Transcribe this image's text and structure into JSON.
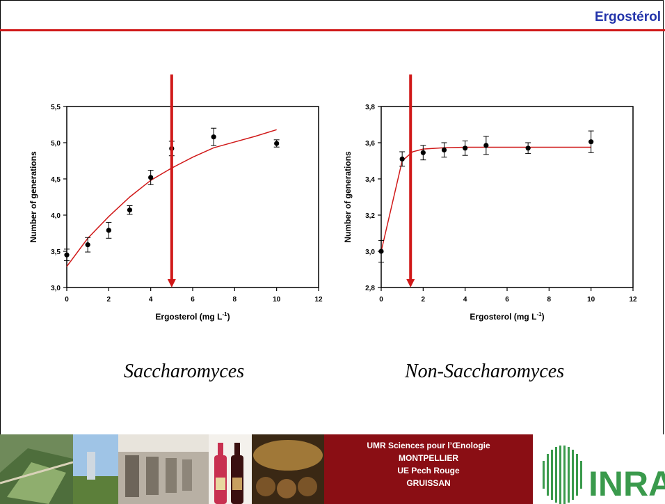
{
  "slide": {
    "title": "Ergostérol"
  },
  "captions": {
    "left": "Saccharomyces",
    "right": "Non-Saccharomyces"
  },
  "footer": {
    "lines": [
      "UMR Sciences pour l’Œnologie",
      "MONTPELLIER",
      "UE Pech Rouge",
      "GRUISSAN"
    ],
    "logo_text": "INRA"
  },
  "colors": {
    "accent": "#d01818",
    "title": "#2233aa",
    "footer": "#8a0e14"
  },
  "chart_data": [
    {
      "type": "scatter",
      "xlabel": "Ergosterol (mg L",
      "xlabel_sup": "-1",
      "xlabel_end": ")",
      "ylabel": "Number of generations",
      "xlim": [
        0,
        12
      ],
      "ylim": [
        3.0,
        5.5
      ],
      "xticks": [
        0,
        2,
        4,
        6,
        8,
        10,
        12
      ],
      "yticks": [
        3.0,
        3.5,
        4.0,
        4.5,
        5.0,
        5.5
      ],
      "ytick_labels": [
        "3,0",
        "3,5",
        "4,0",
        "4,5",
        "5,0",
        "5,5"
      ],
      "points": [
        {
          "x": 0,
          "y": 3.45,
          "err": 0.08
        },
        {
          "x": 1,
          "y": 3.59,
          "err": 0.1
        },
        {
          "x": 2,
          "y": 3.79,
          "err": 0.11
        },
        {
          "x": 3,
          "y": 4.07,
          "err": 0.06
        },
        {
          "x": 4,
          "y": 4.52,
          "err": 0.1
        },
        {
          "x": 5,
          "y": 4.92,
          "err": 0.1
        },
        {
          "x": 7,
          "y": 5.08,
          "err": 0.12
        },
        {
          "x": 10,
          "y": 4.99,
          "err": 0.05
        }
      ],
      "fit": {
        "x": [
          0,
          1,
          2,
          3,
          4,
          5,
          6,
          7,
          8,
          9,
          10
        ],
        "y": [
          3.29,
          3.68,
          3.98,
          4.25,
          4.48,
          4.65,
          4.8,
          4.93,
          5.01,
          5.09,
          5.18
        ]
      },
      "arrow_x": 5
    },
    {
      "type": "scatter",
      "xlabel": "Ergosterol (mg L",
      "xlabel_sup": "-1",
      "xlabel_end": ")",
      "ylabel": "Number of generations",
      "xlim": [
        0,
        12
      ],
      "ylim": [
        2.8,
        3.8
      ],
      "xticks": [
        0,
        2,
        4,
        6,
        8,
        10,
        12
      ],
      "yticks": [
        2.8,
        3.0,
        3.2,
        3.4,
        3.6,
        3.8
      ],
      "ytick_labels": [
        "2,8",
        "3,0",
        "3,2",
        "3,4",
        "3,6",
        "3,8"
      ],
      "points": [
        {
          "x": 0,
          "y": 3.0,
          "err": 0.06
        },
        {
          "x": 1,
          "y": 3.51,
          "err": 0.04
        },
        {
          "x": 2,
          "y": 3.545,
          "err": 0.04
        },
        {
          "x": 3,
          "y": 3.56,
          "err": 0.04
        },
        {
          "x": 4,
          "y": 3.57,
          "err": 0.04
        },
        {
          "x": 5,
          "y": 3.585,
          "err": 0.05
        },
        {
          "x": 7,
          "y": 3.57,
          "err": 0.03
        },
        {
          "x": 10,
          "y": 3.605,
          "err": 0.06
        }
      ],
      "fit": {
        "x": [
          0,
          1,
          1.5,
          2,
          3,
          4,
          5,
          7,
          10
        ],
        "y": [
          3.0,
          3.5,
          3.55,
          3.565,
          3.572,
          3.575,
          3.575,
          3.575,
          3.575
        ]
      },
      "arrow_x": 1.4
    }
  ]
}
